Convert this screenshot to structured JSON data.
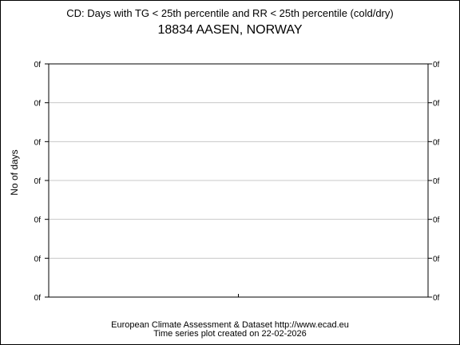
{
  "chart_data": {
    "type": "line",
    "title": "CD: Days with TG < 25th percentile and RR < 25th percentile (cold/dry)",
    "subtitle": "18834 AASEN, NORWAY",
    "xlabel": "",
    "ylabel": "No of days",
    "y_tick_labels": [
      "0f",
      "0f",
      "0f",
      "0f",
      "0f",
      "0f",
      "0f"
    ],
    "x_tick_count": 1,
    "series": [],
    "grid": true,
    "legend": "none"
  },
  "footer": {
    "line1": "European Climate Assessment & Dataset  http://www.ecad.eu",
    "line2": "Time series plot created on 22-02-2026"
  },
  "colors": {
    "grid": "#c8c8c8",
    "axis": "#000000",
    "background": "#ffffff"
  }
}
